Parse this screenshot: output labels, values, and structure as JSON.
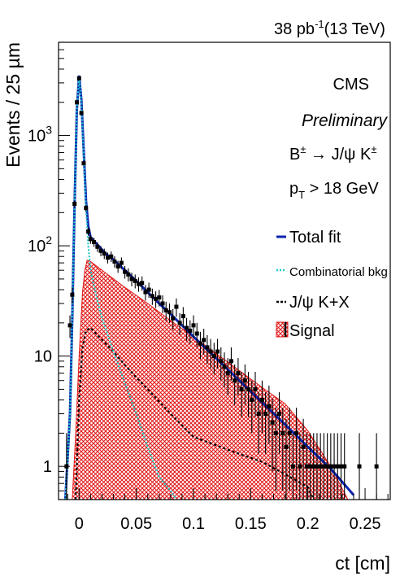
{
  "header": {
    "lumi": "38 pb",
    "lumi_exp": "-1",
    "energy": "(13 TeV)"
  },
  "annotations": {
    "cms": "CMS",
    "preliminary": "Preliminary",
    "decay_b": "B",
    "decay_pm": "±",
    "decay_arrow": " → J/ψ K",
    "decay_pm2": "±",
    "cut_p": "p",
    "cut_sub": "T",
    "cut_rest": " > 18 GeV"
  },
  "colors": {
    "total_fit": "#0b24b0",
    "combinatorial": "#22c8c8",
    "jpsikx": "#000000",
    "signal_hatch": "#e01919",
    "data": "#000000"
  },
  "chart_data": {
    "type": "line",
    "xlabel": "ct [cm]",
    "ylabel": "Events / 25 µm",
    "xlim": [
      -0.018,
      0.272
    ],
    "ylim": [
      0.5,
      7000
    ],
    "ylog": true,
    "x_ticks": [
      {
        "v": 0,
        "label": "0"
      },
      {
        "v": 0.05,
        "label": "0.05"
      },
      {
        "v": 0.1,
        "label": "0.1"
      },
      {
        "v": 0.15,
        "label": "0.15"
      },
      {
        "v": 0.2,
        "label": "0.2"
      },
      {
        "v": 0.25,
        "label": "0.25"
      }
    ],
    "y_ticks": [
      {
        "v": 1,
        "label": "1"
      },
      {
        "v": 10,
        "label": "10"
      },
      {
        "v": 100,
        "label": "10",
        "exp": "2"
      },
      {
        "v": 1000,
        "label": "10",
        "exp": "3"
      }
    ],
    "legend": {
      "position": "right",
      "entries": [
        {
          "label": "Total fit",
          "style": "line",
          "series": "total_fit"
        },
        {
          "label": "Combinatorial bkg",
          "style": "dotted",
          "series": "combinatorial"
        },
        {
          "label": "J/ψ K+X",
          "style": "dashed",
          "series": "jpsikx"
        },
        {
          "label": "Signal",
          "style": "hatch",
          "series": "signal"
        }
      ]
    },
    "series": [
      {
        "name": "Total fit",
        "key": "total_fit",
        "x": [
          -0.012,
          -0.008,
          -0.006,
          -0.004,
          -0.002,
          0.0,
          0.002,
          0.004,
          0.006,
          0.008,
          0.01,
          0.013,
          0.017,
          0.02,
          0.025,
          0.03,
          0.04,
          0.05,
          0.06,
          0.07,
          0.08,
          0.1,
          0.12,
          0.14,
          0.16,
          0.18,
          0.2,
          0.22,
          0.24
        ],
        "y": [
          0.5,
          3,
          22,
          230,
          1700,
          3500,
          2100,
          720,
          255,
          150,
          120,
          110,
          100,
          92,
          82,
          75,
          60,
          48,
          38,
          30,
          24,
          15,
          9.5,
          6,
          3.8,
          2.4,
          1.5,
          0.95,
          0.55
        ]
      },
      {
        "name": "Combinatorial bkg",
        "key": "combinatorial",
        "x": [
          -0.012,
          -0.008,
          -0.006,
          -0.004,
          -0.002,
          0.0,
          0.002,
          0.004,
          0.006,
          0.008,
          0.01,
          0.015,
          0.02,
          0.03,
          0.04,
          0.05,
          0.06,
          0.07,
          0.08,
          0.085
        ],
        "y": [
          0.5,
          3,
          22,
          230,
          1700,
          3400,
          2000,
          650,
          220,
          100,
          60,
          35,
          22,
          11,
          5.7,
          3,
          1.5,
          0.8,
          0.6,
          0.5
        ]
      },
      {
        "name": "J/ψ K+X",
        "key": "jpsikx",
        "x": [
          -0.003,
          0.0,
          0.003,
          0.006,
          0.01,
          0.02,
          0.03,
          0.04,
          0.05,
          0.06,
          0.08,
          0.1,
          0.12,
          0.14,
          0.16,
          0.18,
          0.2,
          0.205
        ],
        "y": [
          0.5,
          4,
          12,
          17,
          18,
          14,
          11,
          8.3,
          6.4,
          5,
          3,
          1.85,
          1.55,
          1.3,
          1.1,
          0.85,
          0.65,
          0.5
        ]
      },
      {
        "name": "Signal",
        "key": "signal",
        "x": [
          -0.006,
          -0.003,
          0.0,
          0.003,
          0.005,
          0.007,
          0.01,
          0.02,
          0.04,
          0.06,
          0.08,
          0.1,
          0.12,
          0.14,
          0.16,
          0.18,
          0.2,
          0.22,
          0.235
        ],
        "y": [
          0.5,
          2,
          10,
          38,
          60,
          74,
          72,
          60,
          42,
          30,
          21,
          15,
          10.5,
          7.4,
          5.2,
          3.7,
          2.1,
          1,
          0.5
        ]
      },
      {
        "name": "Data",
        "key": "data",
        "x": [
          -0.011,
          -0.008,
          -0.006,
          -0.004,
          -0.002,
          0.0,
          0.002,
          0.004,
          0.006,
          0.008,
          0.01,
          0.013,
          0.016,
          0.019,
          0.022,
          0.025,
          0.028,
          0.031,
          0.034,
          0.037,
          0.04,
          0.043,
          0.046,
          0.049,
          0.052,
          0.055,
          0.058,
          0.061,
          0.064,
          0.067,
          0.07,
          0.073,
          0.076,
          0.079,
          0.082,
          0.085,
          0.088,
          0.091,
          0.094,
          0.097,
          0.1,
          0.103,
          0.106,
          0.109,
          0.112,
          0.115,
          0.118,
          0.121,
          0.124,
          0.127,
          0.13,
          0.133,
          0.136,
          0.139,
          0.142,
          0.145,
          0.148,
          0.151,
          0.154,
          0.157,
          0.16,
          0.163,
          0.166,
          0.169,
          0.172,
          0.175,
          0.178,
          0.181,
          0.184,
          0.187,
          0.19,
          0.193,
          0.196,
          0.199,
          0.202,
          0.205,
          0.208,
          0.211,
          0.214,
          0.217,
          0.22,
          0.223,
          0.226,
          0.229,
          0.232,
          0.245,
          0.26
        ],
        "y": [
          1,
          19,
          36,
          240,
          2000,
          3300,
          1600,
          560,
          220,
          135,
          115,
          108,
          98,
          90,
          85,
          78,
          80,
          72,
          65,
          70,
          58,
          55,
          50,
          48,
          45,
          46,
          38,
          40,
          35,
          33,
          34,
          30,
          26,
          25,
          22,
          28,
          20,
          23,
          18,
          17,
          19,
          16,
          13,
          14,
          12,
          11,
          10,
          11,
          9,
          8,
          7,
          9,
          6,
          7,
          5,
          6,
          5,
          4,
          5,
          3,
          4,
          3,
          3.5,
          2.5,
          2,
          3,
          2,
          1.5,
          2,
          1,
          2,
          1,
          1.5,
          1,
          1,
          1,
          1,
          1,
          1,
          1,
          1,
          1,
          1,
          1,
          1,
          1,
          1
        ],
        "yerr": [
          1,
          4.4,
          6,
          15.5,
          45,
          57,
          40,
          23.7,
          14.8,
          11.6,
          10.7,
          10.4,
          9.9,
          9.5,
          9.2,
          8.8,
          8.9,
          8.5,
          8.1,
          8.4,
          7.6,
          7.4,
          7.1,
          6.9,
          6.7,
          6.8,
          6.2,
          6.3,
          5.9,
          5.7,
          5.8,
          5.5,
          5.1,
          5,
          4.7,
          5.3,
          4.5,
          4.8,
          4.2,
          4.1,
          4.4,
          4,
          3.6,
          3.7,
          3.5,
          3.3,
          3.2,
          3.3,
          3,
          2.8,
          2.6,
          3,
          2.4,
          2.6,
          2.2,
          2.4,
          2.2,
          2,
          2.2,
          1.7,
          2,
          1.7,
          1.9,
          1.6,
          1.4,
          1.7,
          1.4,
          1.2,
          1.4,
          1,
          1.4,
          1,
          1.2,
          1,
          1,
          1,
          1,
          1,
          1,
          1,
          1,
          1,
          1,
          1,
          1,
          1,
          1
        ]
      }
    ]
  }
}
